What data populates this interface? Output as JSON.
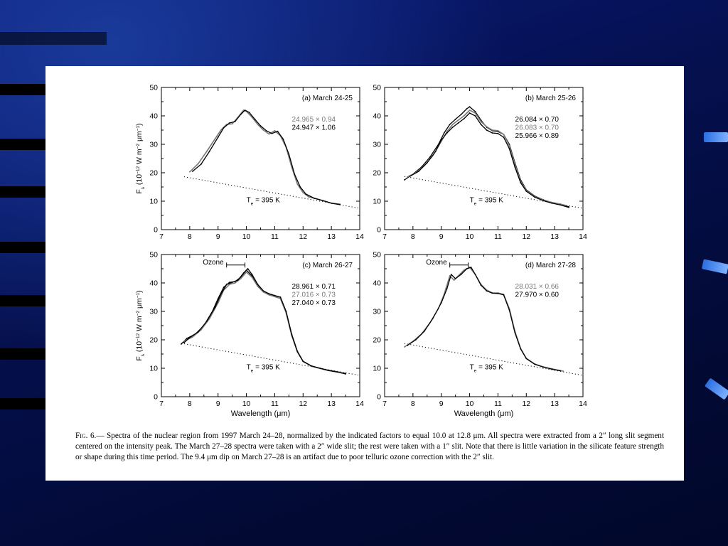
{
  "figure": {
    "caption_label": "Fig. 6.",
    "caption_text": "— Spectra of the nuclear region from 1997 March 24–28, normalized by the indicated factors to equal 10.0 at 12.8 μm. All spectra were extracted from a 2″ long slit segment centered on the intensity peak. The March 27–28 spectra were taken with a 2″ wide slit; the rest were taken with a 1″ slit. Note that there is little variation in the silicate feature strength or shape during this time period. The 9.4 μm dip on March 27–28 is an artifact due to poor telluric ozone correction with the 2″ slit."
  },
  "colors": {
    "primary": "#000000",
    "secondary": "#7a7a7a",
    "paper": "#ffffff"
  },
  "chart_data": [
    {
      "type": "line",
      "panel_label": "(a) March 24-25",
      "xlabel": "",
      "ylabel": "F_λ (10^-12 W m^-2 μm^-1)",
      "xlim": [
        7,
        14
      ],
      "ylim": [
        0,
        50
      ],
      "xticks": [
        7,
        8,
        9,
        10,
        11,
        12,
        13,
        14
      ],
      "yticks": [
        0,
        10,
        20,
        30,
        40,
        50
      ],
      "annotation": "T_e = 395 K",
      "continuum": {
        "style": "dotted",
        "x": [
          7.8,
          14.0
        ],
        "y": [
          18.6,
          7.5
        ]
      },
      "legend": [
        {
          "id": "24.965",
          "factor": "0.94",
          "color": "gray"
        },
        {
          "id": "24.947",
          "factor": "1.06",
          "color": "black"
        }
      ],
      "series": [
        {
          "color": "gray",
          "x": [
            8.0,
            8.3,
            8.6,
            8.9,
            9.1,
            9.3,
            9.5,
            9.7,
            9.9,
            10.0,
            10.2,
            10.4,
            10.6,
            10.8,
            11.0,
            11.2,
            11.4,
            11.6,
            11.8,
            12.0,
            12.2,
            12.5,
            12.8,
            13.0,
            13.3
          ],
          "y": [
            20.3,
            23.2,
            27.5,
            32.0,
            35.0,
            37.0,
            37.2,
            39.5,
            42.0,
            41.6,
            39.5,
            37.0,
            35.0,
            33.6,
            34.8,
            33.0,
            29.0,
            22.0,
            16.0,
            13.0,
            11.5,
            10.8,
            9.9,
            9.3,
            9.0
          ]
        },
        {
          "color": "black",
          "x": [
            8.1,
            8.4,
            8.7,
            9.0,
            9.2,
            9.4,
            9.6,
            9.8,
            9.95,
            10.1,
            10.3,
            10.5,
            10.7,
            10.9,
            11.1,
            11.3,
            11.5,
            11.7,
            11.9,
            12.1,
            12.4,
            12.7,
            13.0,
            13.3
          ],
          "y": [
            20.5,
            23.0,
            27.6,
            32.5,
            35.8,
            37.5,
            38.0,
            40.5,
            42.0,
            41.2,
            38.8,
            36.5,
            34.8,
            33.8,
            34.6,
            31.8,
            26.5,
            19.5,
            15.0,
            12.5,
            11.0,
            10.2,
            9.3,
            8.8
          ]
        }
      ]
    },
    {
      "type": "line",
      "panel_label": "(b) March 25-26",
      "xlabel": "",
      "ylabel": "",
      "xlim": [
        7,
        14
      ],
      "ylim": [
        0,
        50
      ],
      "xticks": [
        7,
        8,
        9,
        10,
        11,
        12,
        13,
        14
      ],
      "yticks": [
        0,
        10,
        20,
        30,
        40,
        50
      ],
      "annotation": "T_e = 395 K",
      "continuum": {
        "style": "dotted",
        "x": [
          7.7,
          14.0
        ],
        "y": [
          18.7,
          7.5
        ]
      },
      "legend": [
        {
          "id": "26.084",
          "factor": "0.70",
          "color": "black"
        },
        {
          "id": "26.083",
          "factor": "0.70",
          "color": "gray"
        },
        {
          "id": "25.966",
          "factor": "0.89",
          "color": "black"
        }
      ],
      "series": [
        {
          "color": "black",
          "x": [
            7.7,
            8.0,
            8.3,
            8.6,
            8.9,
            9.1,
            9.3,
            9.5,
            9.7,
            9.9,
            10.0,
            10.2,
            10.4,
            10.6,
            10.8,
            11.0,
            11.2,
            11.4,
            11.6,
            11.8,
            12.0,
            12.3,
            12.6,
            12.9,
            13.2,
            13.5
          ],
          "y": [
            17.5,
            19.5,
            22.0,
            25.5,
            30.0,
            34.0,
            37.0,
            38.8,
            40.5,
            42.5,
            43.2,
            41.5,
            38.5,
            36.0,
            34.8,
            34.5,
            33.5,
            30.0,
            23.5,
            17.5,
            14.0,
            11.8,
            10.5,
            9.5,
            9.0,
            8.0
          ]
        },
        {
          "color": "gray",
          "x": [
            7.8,
            8.1,
            8.4,
            8.7,
            9.0,
            9.2,
            9.4,
            9.6,
            9.8,
            10.0,
            10.2,
            10.4,
            10.6,
            10.8,
            11.0,
            11.2,
            11.4,
            11.6,
            11.8,
            12.0,
            12.3,
            12.6,
            12.9,
            13.2,
            13.4
          ],
          "y": [
            18.5,
            20.0,
            22.5,
            26.0,
            31.0,
            34.5,
            37.0,
            38.5,
            40.0,
            42.0,
            41.0,
            38.0,
            36.2,
            35.0,
            34.8,
            33.5,
            29.5,
            23.0,
            17.0,
            13.8,
            11.6,
            10.4,
            9.6,
            9.0,
            8.5
          ]
        },
        {
          "color": "black",
          "x": [
            7.9,
            8.2,
            8.5,
            8.8,
            9.0,
            9.2,
            9.4,
            9.6,
            9.8,
            10.0,
            10.2,
            10.4,
            10.6,
            10.8,
            11.0,
            11.2,
            11.4,
            11.6,
            11.8,
            12.0,
            12.3,
            12.6,
            12.9,
            13.2,
            13.5
          ],
          "y": [
            18.8,
            20.5,
            23.5,
            27.5,
            31.5,
            34.0,
            36.0,
            37.5,
            39.0,
            41.0,
            40.0,
            37.0,
            35.0,
            34.0,
            33.8,
            32.5,
            28.5,
            22.0,
            16.5,
            13.5,
            11.4,
            10.2,
            9.3,
            8.7,
            7.8
          ]
        }
      ]
    },
    {
      "type": "line",
      "panel_label": "(c) March 26-27",
      "xlabel": "Wavelength (μm)",
      "ylabel": "F_λ (10^-12 W m^-2 μm^-1)",
      "xlim": [
        7,
        14
      ],
      "ylim": [
        0,
        50
      ],
      "xticks": [
        7,
        8,
        9,
        10,
        11,
        12,
        13,
        14
      ],
      "yticks": [
        0,
        10,
        20,
        30,
        40,
        50
      ],
      "annotation": "T_e = 395 K",
      "bracket": {
        "label": "Ozone",
        "x": [
          9.3,
          9.95
        ],
        "y": 46.3
      },
      "continuum": {
        "style": "dotted",
        "x": [
          7.7,
          14.0
        ],
        "y": [
          18.8,
          7.5
        ]
      },
      "legend": [
        {
          "id": "28.961",
          "factor": "0.71",
          "color": "black"
        },
        {
          "id": "27.016",
          "factor": "0.73",
          "color": "gray"
        },
        {
          "id": "27.040",
          "factor": "0.73",
          "color": "black"
        }
      ],
      "series": [
        {
          "color": "black",
          "x": [
            7.7,
            7.9,
            8.2,
            8.5,
            8.8,
            9.0,
            9.2,
            9.4,
            9.6,
            9.8,
            10.0,
            10.2,
            10.4,
            10.6,
            10.8,
            11.0,
            11.2,
            11.4,
            11.6,
            11.8,
            12.0,
            12.3,
            12.6,
            12.9,
            13.2,
            13.5
          ],
          "y": [
            18.5,
            20.5,
            22.0,
            25.0,
            30.0,
            34.5,
            38.5,
            40.2,
            40.5,
            42.0,
            44.5,
            42.5,
            39.0,
            37.0,
            36.0,
            35.5,
            35.0,
            30.0,
            22.0,
            16.0,
            12.5,
            10.8,
            10.0,
            9.3,
            8.8,
            8.2
          ]
        },
        {
          "color": "gray",
          "x": [
            7.8,
            8.1,
            8.4,
            8.7,
            9.0,
            9.2,
            9.4,
            9.6,
            9.8,
            10.0,
            10.2,
            10.4,
            10.6,
            10.8,
            11.0,
            11.2,
            11.4,
            11.6,
            11.8,
            12.0,
            12.3,
            12.6,
            12.9,
            13.2,
            13.4
          ],
          "y": [
            19.5,
            21.0,
            23.5,
            27.5,
            33.0,
            37.5,
            39.5,
            40.0,
            41.5,
            43.8,
            42.0,
            38.8,
            36.8,
            35.8,
            35.2,
            34.5,
            29.5,
            21.5,
            15.8,
            12.4,
            10.7,
            9.9,
            9.2,
            8.7,
            8.4
          ]
        },
        {
          "color": "black",
          "x": [
            7.8,
            8.0,
            8.3,
            8.6,
            8.9,
            9.1,
            9.3,
            9.5,
            9.7,
            9.9,
            10.05,
            10.2,
            10.4,
            10.6,
            10.8,
            11.0,
            11.2,
            11.4,
            11.6,
            11.8,
            12.0,
            12.3,
            12.6,
            12.9,
            13.2,
            13.5
          ],
          "y": [
            19.0,
            20.8,
            22.8,
            26.5,
            31.5,
            36.0,
            39.5,
            40.2,
            41.0,
            43.5,
            45.0,
            43.0,
            39.5,
            37.2,
            36.2,
            35.6,
            35.0,
            30.0,
            21.8,
            15.8,
            12.4,
            10.8,
            10.0,
            9.2,
            8.7,
            8.0
          ]
        }
      ]
    },
    {
      "type": "line",
      "panel_label": "(d) March 27-28",
      "xlabel": "Wavelength (μm)",
      "ylabel": "",
      "xlim": [
        7,
        14
      ],
      "ylim": [
        0,
        50
      ],
      "xticks": [
        7,
        8,
        9,
        10,
        11,
        12,
        13,
        14
      ],
      "yticks": [
        0,
        10,
        20,
        30,
        40,
        50
      ],
      "annotation": "T_e = 395 K",
      "bracket": {
        "label": "Ozone",
        "x": [
          9.3,
          9.95
        ],
        "y": 46.3
      },
      "continuum": {
        "style": "dotted",
        "x": [
          7.7,
          14.0
        ],
        "y": [
          18.7,
          7.5
        ]
      },
      "legend": [
        {
          "id": "28.031",
          "factor": "0.66",
          "color": "gray"
        },
        {
          "id": "27.970",
          "factor": "0.60",
          "color": "black"
        }
      ],
      "series": [
        {
          "color": "gray",
          "x": [
            7.7,
            8.0,
            8.3,
            8.6,
            8.9,
            9.1,
            9.3,
            9.45,
            9.6,
            9.8,
            10.0,
            10.2,
            10.4,
            10.6,
            10.8,
            11.0,
            11.2,
            11.4,
            11.6,
            11.8,
            12.0,
            12.3,
            12.6,
            12.9,
            13.2,
            13.3
          ],
          "y": [
            17.5,
            19.5,
            22.0,
            26.0,
            31.0,
            36.0,
            42.5,
            41.0,
            42.5,
            44.5,
            45.5,
            43.0,
            39.5,
            37.5,
            36.5,
            36.5,
            36.0,
            31.0,
            23.0,
            17.0,
            13.5,
            11.5,
            10.5,
            9.8,
            9.2,
            9.0
          ]
        },
        {
          "color": "black",
          "x": [
            7.8,
            8.1,
            8.4,
            8.7,
            9.0,
            9.2,
            9.35,
            9.5,
            9.7,
            9.9,
            10.05,
            10.2,
            10.4,
            10.6,
            10.8,
            11.0,
            11.2,
            11.4,
            11.6,
            11.8,
            12.0,
            12.3,
            12.6,
            12.9,
            13.2
          ],
          "y": [
            18.0,
            20.0,
            23.0,
            27.5,
            33.0,
            38.0,
            43.0,
            41.5,
            43.0,
            45.0,
            45.5,
            43.0,
            39.2,
            37.2,
            36.4,
            36.3,
            35.8,
            30.5,
            22.5,
            16.8,
            13.4,
            11.4,
            10.4,
            9.7,
            9.1
          ]
        }
      ]
    }
  ]
}
